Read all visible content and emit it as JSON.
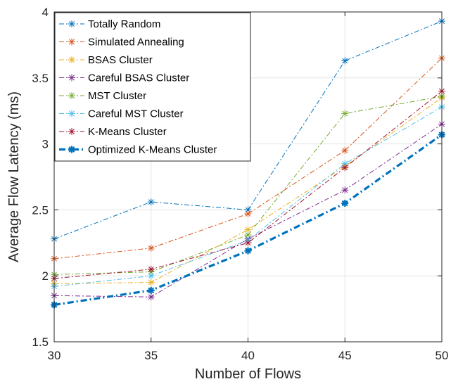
{
  "chart_data": {
    "type": "line",
    "title": "",
    "xlabel": "Number of Flows",
    "ylabel": "Average Flow Latency (ms)",
    "xlim": [
      30,
      50
    ],
    "ylim": [
      1.5,
      4
    ],
    "xticks": [
      "30",
      "35",
      "40",
      "45",
      "50"
    ],
    "yticks": [
      "1.5",
      "2",
      "2.5",
      "3",
      "3.5",
      "4"
    ],
    "grid": true,
    "legend_position": "top-left",
    "x": [
      30,
      35,
      40,
      45,
      50
    ],
    "series": [
      {
        "name": "Totally Random",
        "color": "#0072BD",
        "style": "dashdot",
        "values": [
          2.28,
          2.56,
          2.5,
          3.63,
          3.93
        ]
      },
      {
        "name": "Simulated Annealing",
        "color": "#D95319",
        "style": "dashdot",
        "values": [
          2.13,
          2.21,
          2.47,
          2.95,
          3.65
        ]
      },
      {
        "name": "BSAS Cluster",
        "color": "#EDB120",
        "style": "dashdot",
        "values": [
          1.94,
          1.95,
          2.35,
          2.83,
          3.35
        ]
      },
      {
        "name": "Careful BSAS Cluster",
        "color": "#7E2F8E",
        "style": "dashdot",
        "values": [
          1.85,
          1.84,
          2.28,
          2.65,
          3.15
        ]
      },
      {
        "name": "MST Cluster",
        "color": "#77AC30",
        "style": "dashdot",
        "values": [
          2.01,
          2.03,
          2.31,
          3.23,
          3.36
        ]
      },
      {
        "name": "Careful MST Cluster",
        "color": "#4DBEEE",
        "style": "dashdot",
        "values": [
          1.92,
          2.0,
          2.27,
          2.85,
          3.28
        ]
      },
      {
        "name": "K-Means Cluster",
        "color": "#A2142F",
        "style": "dashdot",
        "values": [
          1.98,
          2.05,
          2.25,
          2.82,
          3.4
        ]
      },
      {
        "name": "Optimized K-Means Cluster",
        "color": "#0072BD",
        "style": "dashdot-bold",
        "values": [
          1.78,
          1.89,
          2.19,
          2.55,
          3.07
        ]
      }
    ]
  }
}
